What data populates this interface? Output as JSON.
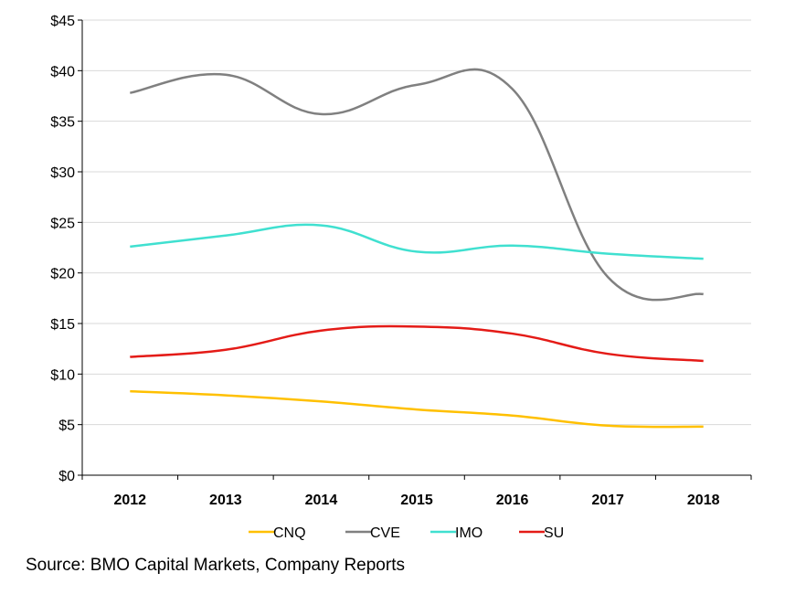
{
  "chart_data": {
    "type": "line",
    "categories": [
      "2012",
      "2013",
      "2014",
      "2015",
      "2016",
      "2017",
      "2018"
    ],
    "y_ticks": [
      "$0",
      "$5",
      "$10",
      "$15",
      "$20",
      "$25",
      "$30",
      "$35",
      "$40",
      "$45"
    ],
    "ylim": [
      0,
      45
    ],
    "grid": true,
    "legend_position": "bottom",
    "series": [
      {
        "name": "CNQ",
        "color": "#FFC000",
        "values": [
          8.3,
          7.9,
          7.3,
          6.5,
          5.9,
          4.9,
          4.8
        ]
      },
      {
        "name": "CVE",
        "color": "#808080",
        "values": [
          37.8,
          39.6,
          35.7,
          38.6,
          38.2,
          19.6,
          17.9
        ]
      },
      {
        "name": "IMO",
        "color": "#40E0D0",
        "values": [
          22.6,
          23.7,
          24.7,
          22.1,
          22.7,
          21.9,
          21.4
        ]
      },
      {
        "name": "SU",
        "color": "#E41B17",
        "values": [
          11.7,
          12.4,
          14.3,
          14.7,
          14.0,
          12.0,
          11.3
        ]
      }
    ]
  },
  "source": "Source: BMO Capital Markets, Company Reports"
}
